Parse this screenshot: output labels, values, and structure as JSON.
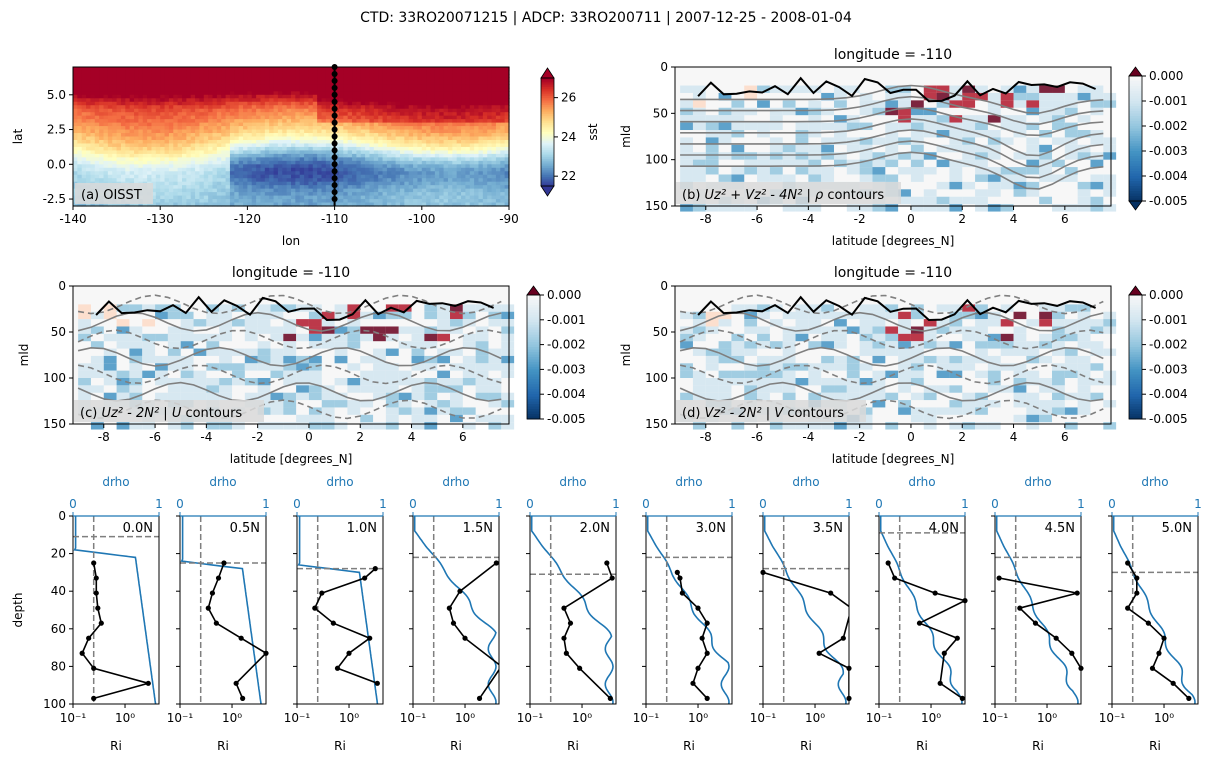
{
  "suptitle": "CTD: 33RO20071215 | ADCP: 33RO200711 | 2007-12-25 - 2008-01-04",
  "panel_a": {
    "label": "(a) OISST",
    "xlabel": "lon",
    "ylabel": "lat",
    "xticks": [
      -140,
      -130,
      -120,
      -110,
      -100,
      -90
    ],
    "yticks": [
      -2.5,
      0.0,
      2.5,
      5.0
    ],
    "ytick_labels": [
      "-2.5",
      "0.0",
      "2.5",
      "5.0"
    ],
    "xlim": [
      -140,
      -90
    ],
    "ylim": [
      -3,
      7
    ],
    "colorbar": {
      "label": "sst",
      "ticks": [
        22,
        24,
        26
      ],
      "range": [
        21.5,
        27
      ]
    },
    "colormap": [
      "#313695",
      "#4575b4",
      "#74add1",
      "#abd9e9",
      "#e0f3f8",
      "#ffffbf",
      "#fee090",
      "#fdae61",
      "#f46d43",
      "#d73027",
      "#a50026"
    ],
    "station_longitude": -110
  },
  "section_panels": [
    {
      "id": "b",
      "title": "longitude = -110",
      "ylabel": "mld",
      "xlabel": "latitude [degrees_N]",
      "label": "(b) $U_z^2 + V_z^2 - 4N^2$ | $\\rho$ contours",
      "colorbar": {
        "ticks": [
          "0.000",
          "-0.001",
          "-0.002",
          "-0.003",
          "-0.004",
          "-0.005"
        ]
      }
    },
    {
      "id": "c",
      "title": "longitude = -110",
      "ylabel": "mld",
      "xlabel": "latitude [degrees_N]",
      "label": "(c) $U_z^2 - 2N^2$ | $U$ contours",
      "colorbar": {
        "ticks": [
          "0.000",
          "-0.001",
          "-0.002",
          "-0.003",
          "-0.004",
          "-0.005"
        ]
      }
    },
    {
      "id": "d",
      "title": "longitude = -110",
      "ylabel": "mld",
      "xlabel": "latitude [degrees_N]",
      "label": "(d) $V_z^2 - 2N^2$ | $V$ contours",
      "colorbar": {
        "ticks": [
          "0.000",
          "-0.001",
          "-0.002",
          "-0.003",
          "-0.004",
          "-0.005"
        ]
      }
    }
  ],
  "section_axes": {
    "xticks": [
      -8,
      -6,
      -4,
      -2,
      0,
      2,
      4,
      6
    ],
    "yticks": [
      0,
      50,
      100,
      150
    ],
    "xlim": [
      -9.2,
      7.8
    ],
    "ylim": [
      150,
      0
    ]
  },
  "profiles": {
    "ylabel": "depth",
    "xlabel": "Ri",
    "top_label": "drho",
    "top_ticks": [
      "0",
      "1"
    ],
    "bottom_ticks": [
      "10⁻¹",
      "10⁰"
    ],
    "yticks": [
      0,
      20,
      40,
      60,
      80,
      100
    ],
    "ri_critical": 0.25,
    "panels": [
      {
        "label": "0.0N",
        "mld": 11,
        "ri": [
          [
            0.25,
            25
          ],
          [
            0.28,
            33
          ],
          [
            0.28,
            41
          ],
          [
            0.3,
            49
          ],
          [
            0.35,
            57
          ],
          [
            0.2,
            65
          ],
          [
            0.15,
            73
          ],
          [
            0.25,
            81
          ],
          [
            2.8,
            89
          ],
          [
            0.25,
            97
          ]
        ],
        "drho_surf": 20
      },
      {
        "label": "0.5N",
        "mld": 25,
        "ri": [
          [
            0.7,
            25
          ],
          [
            0.55,
            33
          ],
          [
            0.42,
            41
          ],
          [
            0.35,
            49
          ],
          [
            0.5,
            57
          ],
          [
            1.5,
            65
          ],
          [
            4.5,
            73
          ],
          [
            1.2,
            89
          ],
          [
            1.6,
            97
          ]
        ],
        "drho_surf": 26
      },
      {
        "label": "1.0N",
        "mld": 28,
        "ri": [
          [
            3.2,
            28
          ],
          [
            2.0,
            33
          ],
          [
            0.3,
            41
          ],
          [
            0.22,
            49
          ],
          [
            0.5,
            57
          ],
          [
            2.5,
            65
          ],
          [
            1.0,
            73
          ],
          [
            0.6,
            81
          ],
          [
            3.5,
            89
          ]
        ],
        "drho_surf": 28
      },
      {
        "label": "1.5N",
        "mld": 22,
        "ri": [
          [
            4.0,
            25
          ],
          [
            0.8,
            40
          ],
          [
            0.5,
            49
          ],
          [
            0.6,
            57
          ],
          [
            1.0,
            65
          ],
          [
            5.0,
            80
          ],
          [
            1.9,
            97
          ]
        ],
        "drho_surf": 44
      },
      {
        "label": "2.0N",
        "mld": 31,
        "ri": [
          [
            3.0,
            25
          ],
          [
            3.8,
            33
          ],
          [
            0.45,
            49
          ],
          [
            0.6,
            57
          ],
          [
            0.45,
            65
          ],
          [
            0.5,
            73
          ],
          [
            0.9,
            81
          ],
          [
            3.5,
            97
          ]
        ],
        "drho_surf": 46
      },
      {
        "label": "3.0N",
        "mld": 22,
        "ri": [
          [
            0.4,
            30
          ],
          [
            0.45,
            33
          ],
          [
            0.5,
            41
          ],
          [
            1.0,
            49
          ],
          [
            1.5,
            57
          ],
          [
            1.2,
            65
          ],
          [
            1.5,
            73
          ],
          [
            1.0,
            81
          ],
          [
            0.8,
            89
          ],
          [
            1.5,
            97
          ]
        ],
        "drho_surf": 60
      },
      {
        "label": "3.5N",
        "mld": 28,
        "ri": [
          [
            0.1,
            30
          ],
          [
            2.0,
            41
          ],
          [
            5.0,
            49
          ],
          [
            3.5,
            65
          ],
          [
            1.2,
            73
          ],
          [
            4.5,
            81
          ],
          [
            4.5,
            97
          ]
        ],
        "drho_surf": 66
      },
      {
        "label": "4.0N",
        "mld": 9,
        "ri": [
          [
            0.15,
            25
          ],
          [
            0.2,
            33
          ],
          [
            1.2,
            41
          ],
          [
            4.5,
            45
          ],
          [
            0.6,
            57
          ],
          [
            3.2,
            65
          ],
          [
            1.8,
            73
          ],
          [
            1.5,
            89
          ],
          [
            4.0,
            97
          ]
        ],
        "drho_surf": 75
      },
      {
        "label": "4.5N",
        "mld": 22,
        "ri": [
          [
            0.12,
            33
          ],
          [
            3.8,
            41
          ],
          [
            0.3,
            49
          ],
          [
            0.6,
            57
          ],
          [
            1.5,
            65
          ],
          [
            3.0,
            73
          ],
          [
            4.5,
            81
          ]
        ],
        "drho_surf": 75
      },
      {
        "label": "5.0N",
        "mld": 30,
        "ri": [
          [
            0.2,
            25
          ],
          [
            0.3,
            33
          ],
          [
            0.3,
            41
          ],
          [
            0.2,
            49
          ],
          [
            0.5,
            57
          ],
          [
            1.0,
            65
          ],
          [
            0.8,
            73
          ],
          [
            0.6,
            81
          ],
          [
            1.5,
            89
          ],
          [
            3.0,
            97
          ]
        ],
        "drho_surf": 77
      }
    ]
  }
}
